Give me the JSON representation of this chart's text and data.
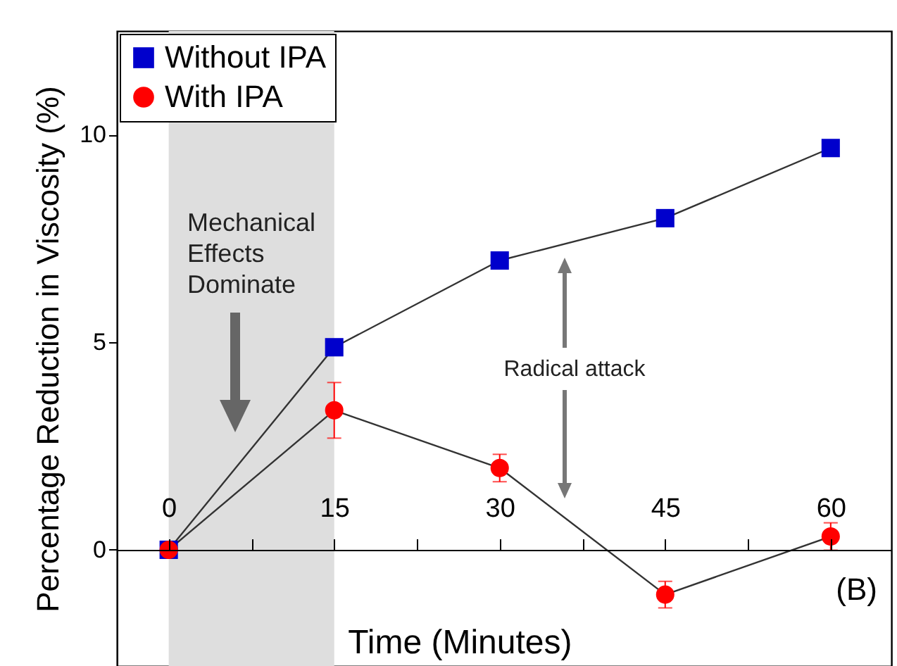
{
  "chart_data": {
    "type": "line",
    "xlabel": "Time (Minutes)",
    "ylabel": "Percentage Reduction in Viscosity (%)",
    "x": [
      0,
      15,
      30,
      45,
      60
    ],
    "series": [
      {
        "name": "Without IPA",
        "color": "#0000cc",
        "marker": "square",
        "values": [
          0,
          4.88,
          6.97,
          7.99,
          9.68
        ]
      },
      {
        "name": "With IPA",
        "color": "#ff0000",
        "marker": "circle",
        "values": [
          0,
          3.36,
          1.97,
          -1.08,
          0.32
        ],
        "errors": [
          0.1,
          0.67,
          0.33,
          0.32,
          0.33
        ]
      }
    ],
    "xlim": [
      -4.7,
      65.5
    ],
    "ylim": [
      -2.8,
      12.5
    ],
    "xticks": [
      0,
      {
        "value": 7.5,
        "label": null
      },
      15,
      {
        "value": 22.5,
        "label": null
      },
      30,
      {
        "value": 37.5,
        "label": null
      },
      45,
      {
        "value": 52.5,
        "label": null
      },
      60
    ],
    "yticks": [
      0,
      5,
      10
    ],
    "bands": [
      {
        "axis": "x",
        "from": 0,
        "to": 15,
        "color": "#dedede"
      }
    ],
    "annotations": [
      "Mechanical Effects Dominate",
      "Radical attack",
      "(B)"
    ],
    "legend": "top left"
  }
}
